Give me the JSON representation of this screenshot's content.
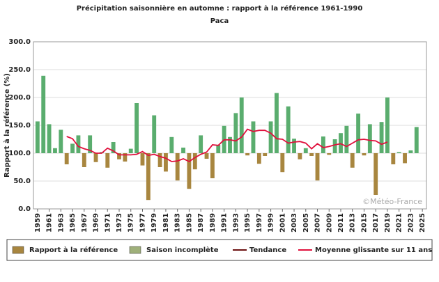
{
  "chart_data": {
    "type": "bar",
    "title": "Précipitation saisonnière en automne : rapport à la référence 1961-1990",
    "subtitle": "Paca",
    "y_label": "Rapport à la référence (%)",
    "watermark": "©Météo-France",
    "baseline": 100,
    "x": [
      1959,
      1960,
      1961,
      1962,
      1963,
      1964,
      1965,
      1966,
      1967,
      1968,
      1969,
      1970,
      1971,
      1972,
      1973,
      1974,
      1975,
      1976,
      1977,
      1978,
      1979,
      1980,
      1981,
      1982,
      1983,
      1984,
      1985,
      1986,
      1987,
      1988,
      1989,
      1990,
      1991,
      1992,
      1993,
      1994,
      1995,
      1996,
      1997,
      1998,
      1999,
      2000,
      2001,
      2002,
      2003,
      2004,
      2005,
      2006,
      2007,
      2008,
      2009,
      2010,
      2011,
      2012,
      2013,
      2014,
      2015,
      2016,
      2017,
      2018,
      2019,
      2020,
      2021,
      2022,
      2023,
      2024
    ],
    "series": [
      {
        "name": "Rapport à la référence",
        "color": "#a8863f",
        "above_color": "#5aad6e",
        "values": [
          157,
          239,
          152,
          109,
          142,
          80,
          117,
          132,
          75,
          132,
          84,
          102,
          74,
          120,
          89,
          85,
          108,
          190,
          78,
          16,
          168,
          75,
          67,
          129,
          51,
          110,
          36,
          71,
          132,
          90,
          55,
          115,
          149,
          129,
          172,
          200,
          96,
          157,
          81,
          95,
          157,
          208,
          66,
          184,
          126,
          89,
          109,
          95,
          51,
          130,
          97,
          125,
          136,
          149,
          74,
          171,
          96,
          152,
          25,
          156,
          200,
          80,
          102,
          82,
          105,
          147
        ]
      },
      {
        "name": "Saison incomplète",
        "color": "#9fb07a"
      },
      {
        "name": "Tendance",
        "color": "#6b1010"
      },
      {
        "name": "Moyenne glissante sur 11 ans",
        "color": "#e0103c",
        "type": "line",
        "values": [
          null,
          null,
          null,
          null,
          null,
          130,
          126,
          112,
          108,
          105,
          100,
          100,
          109,
          104,
          97,
          97,
          97,
          98,
          103,
          96,
          98,
          94,
          91,
          85,
          86,
          90,
          85,
          92,
          98,
          102,
          115,
          114,
          124,
          124,
          122,
          129,
          143,
          139,
          141,
          141,
          136,
          126,
          125,
          118,
          120,
          121,
          118,
          108,
          117,
          110,
          112,
          115,
          117,
          112,
          118,
          124,
          125,
          123,
          122,
          116,
          120,
          null,
          null,
          null,
          null,
          null
        ]
      }
    ],
    "xlim": [
      1958.3,
      2025.7
    ],
    "xticks": [
      1959,
      1961,
      1963,
      1965,
      1967,
      1969,
      1971,
      1973,
      1975,
      1977,
      1979,
      1981,
      1983,
      1985,
      1987,
      1989,
      1991,
      1993,
      1995,
      1997,
      1999,
      2001,
      2003,
      2005,
      2007,
      2009,
      2011,
      2013,
      2015,
      2017,
      2019,
      2021,
      2023,
      2025
    ],
    "ylim": [
      0,
      300
    ],
    "yticks": [
      {
        "value": 0,
        "label": "0.0"
      },
      {
        "value": 50,
        "label": "50.0"
      },
      {
        "value": 100,
        "label": "100.0"
      },
      {
        "value": 150,
        "label": "150.0"
      },
      {
        "value": 200,
        "label": "200.0"
      },
      {
        "value": 250,
        "label": "250.0"
      },
      {
        "value": 300,
        "label": "300.0"
      }
    ],
    "grid": true
  }
}
